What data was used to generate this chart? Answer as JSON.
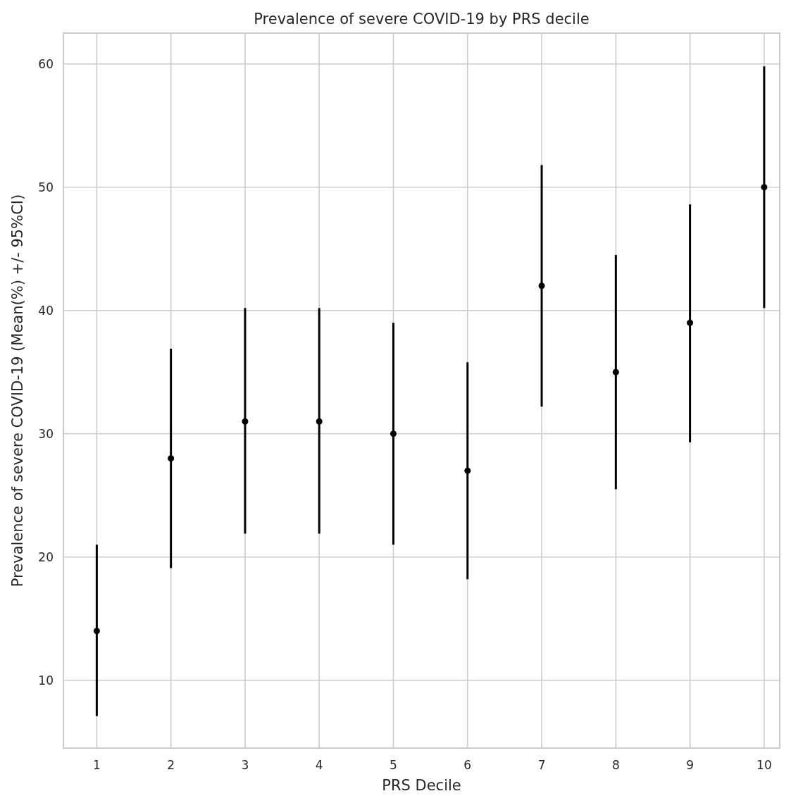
{
  "chart_data": {
    "type": "scatter",
    "title": "Prevalence of severe COVID-19 by PRS decile",
    "xlabel": "PRS Decile",
    "ylabel": "Prevalence of severe COVID-19 (Mean(%) +/- 95%CI)",
    "x": [
      1,
      2,
      3,
      4,
      5,
      6,
      7,
      8,
      9,
      10
    ],
    "series": [
      {
        "color": "#000000",
        "values": [
          14,
          28,
          31,
          31,
          30,
          27,
          42,
          35,
          39,
          50
        ],
        "errors": [
          [
            7.1,
            21
          ],
          [
            19.1,
            36.9
          ],
          [
            21.9,
            40.2
          ],
          [
            21.9,
            40.2
          ],
          [
            21,
            39
          ],
          [
            18.2,
            35.8
          ],
          [
            32.2,
            51.8
          ],
          [
            25.5,
            44.5
          ],
          [
            29.3,
            48.6
          ],
          [
            40.2,
            59.8
          ]
        ]
      }
    ],
    "xlim": [
      0.55,
      10.21
    ],
    "xticks": [
      1,
      2,
      3,
      4,
      5,
      6,
      7,
      8,
      9,
      10
    ],
    "ylim": [
      4.5,
      62.5
    ],
    "yticks": [
      10,
      20,
      30,
      40,
      50,
      60
    ],
    "grid": true,
    "marker": "circle"
  }
}
